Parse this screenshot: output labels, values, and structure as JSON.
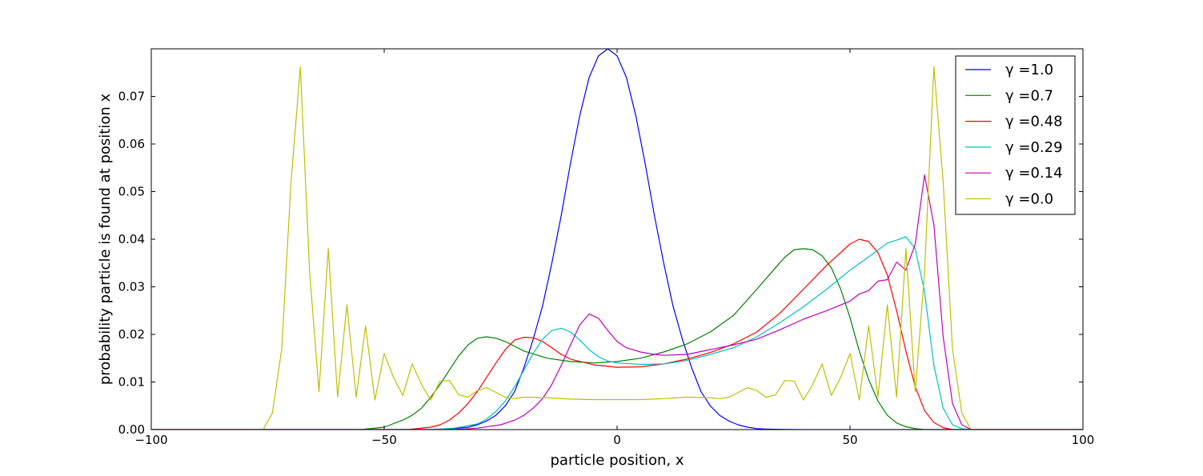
{
  "chart_data": {
    "type": "line",
    "title": "",
    "xlabel": "particle position, x",
    "ylabel": "probability particle is found at position x",
    "xlim": [
      -100,
      100
    ],
    "ylim": [
      0,
      0.08
    ],
    "xticks": [
      -100,
      -50,
      0,
      50,
      100
    ],
    "xtick_labels": [
      "−100",
      "−50",
      "0",
      "50",
      "100"
    ],
    "yticks": [
      0.0,
      0.01,
      0.02,
      0.03,
      0.04,
      0.05,
      0.06,
      0.07
    ],
    "ytick_labels": [
      "0.00",
      "0.01",
      "0.02",
      "0.03",
      "0.04",
      "0.05",
      "0.06",
      "0.07"
    ],
    "grid": false,
    "legend_position": "top-right",
    "series": [
      {
        "name": "γ =1.0",
        "color": "#0000ff",
        "x": [
          -100,
          -40,
          -35,
          -32,
          -30,
          -28,
          -26,
          -24,
          -22,
          -20,
          -18,
          -16,
          -14,
          -12,
          -10,
          -8,
          -6,
          -4,
          -2,
          0,
          2,
          4,
          6,
          8,
          10,
          12,
          14,
          16,
          18,
          20,
          22,
          24,
          26,
          28,
          30,
          32,
          35,
          40,
          100
        ],
        "y": [
          0,
          0,
          0.0002,
          0.0005,
          0.001,
          0.0018,
          0.003,
          0.005,
          0.008,
          0.013,
          0.019,
          0.026,
          0.035,
          0.045,
          0.056,
          0.066,
          0.074,
          0.0785,
          0.08,
          0.0785,
          0.074,
          0.066,
          0.056,
          0.045,
          0.035,
          0.026,
          0.019,
          0.013,
          0.008,
          0.005,
          0.003,
          0.0018,
          0.001,
          0.0005,
          0.0002,
          0.0001,
          5e-05,
          0,
          0
        ]
      },
      {
        "name": "γ =0.7",
        "color": "#008000",
        "x": [
          -100,
          -55,
          -50,
          -46,
          -44,
          -42,
          -40,
          -38,
          -36,
          -34,
          -32,
          -30,
          -28,
          -26,
          -24,
          -22,
          -20,
          -15,
          -10,
          -5,
          0,
          5,
          10,
          15,
          20,
          25,
          30,
          34,
          36,
          38,
          40,
          42,
          44,
          46,
          48,
          50,
          52,
          54,
          56,
          58,
          60,
          62,
          64,
          66,
          68,
          70,
          100
        ],
        "y": [
          0,
          0,
          0.0005,
          0.002,
          0.003,
          0.0045,
          0.0068,
          0.0095,
          0.0125,
          0.0155,
          0.0178,
          0.0192,
          0.0195,
          0.0192,
          0.0185,
          0.0175,
          0.0165,
          0.015,
          0.0143,
          0.014,
          0.0143,
          0.015,
          0.0163,
          0.018,
          0.0205,
          0.024,
          0.0295,
          0.034,
          0.0362,
          0.0378,
          0.038,
          0.0378,
          0.0365,
          0.034,
          0.0295,
          0.0235,
          0.0165,
          0.0105,
          0.006,
          0.003,
          0.0014,
          0.0006,
          0.0002,
          0,
          0,
          0,
          0
        ]
      },
      {
        "name": "γ =0.48",
        "color": "#ff0000",
        "x": [
          -100,
          -45,
          -40,
          -38,
          -36,
          -34,
          -32,
          -30,
          -28,
          -26,
          -24,
          -22,
          -20,
          -18,
          -16,
          -14,
          -12,
          -10,
          -5,
          0,
          5,
          10,
          15,
          20,
          25,
          30,
          35,
          40,
          45,
          50,
          52,
          54,
          56,
          58,
          60,
          62,
          64,
          66,
          68,
          70,
          72,
          100
        ],
        "y": [
          0,
          0,
          0.0005,
          0.001,
          0.002,
          0.0035,
          0.0055,
          0.008,
          0.011,
          0.014,
          0.0168,
          0.0188,
          0.0194,
          0.0193,
          0.0185,
          0.0172,
          0.0158,
          0.0148,
          0.0136,
          0.0131,
          0.0132,
          0.0138,
          0.0148,
          0.0162,
          0.018,
          0.0205,
          0.0245,
          0.0295,
          0.0345,
          0.039,
          0.04,
          0.0395,
          0.0372,
          0.0325,
          0.025,
          0.0165,
          0.009,
          0.004,
          0.0015,
          0.0004,
          0,
          0
        ]
      },
      {
        "name": "γ =0.29",
        "color": "#00bfbf",
        "x": [
          -100,
          -40,
          -35,
          -30,
          -28,
          -26,
          -24,
          -22,
          -20,
          -18,
          -16,
          -14,
          -12,
          -10,
          -8,
          -6,
          -4,
          -2,
          0,
          5,
          10,
          15,
          20,
          25,
          30,
          35,
          40,
          45,
          50,
          55,
          58,
          60,
          62,
          64,
          66,
          68,
          70,
          72,
          74,
          76,
          100
        ],
        "y": [
          0,
          0,
          0.0003,
          0.0012,
          0.0022,
          0.0038,
          0.006,
          0.009,
          0.0125,
          0.016,
          0.019,
          0.0208,
          0.0213,
          0.0205,
          0.0188,
          0.0168,
          0.0153,
          0.0144,
          0.014,
          0.0137,
          0.0138,
          0.0145,
          0.0158,
          0.0172,
          0.0195,
          0.0225,
          0.0258,
          0.0295,
          0.0335,
          0.037,
          0.0392,
          0.0398,
          0.0405,
          0.038,
          0.029,
          0.0135,
          0.0045,
          0.001,
          0.0002,
          0,
          0
        ]
      },
      {
        "name": "γ =0.14",
        "color": "#bf00bf",
        "x": [
          -100,
          -35,
          -30,
          -25,
          -22,
          -20,
          -18,
          -16,
          -14,
          -12,
          -10,
          -8,
          -6,
          -4,
          -2,
          0,
          2,
          5,
          8,
          10,
          15,
          20,
          25,
          30,
          35,
          40,
          45,
          50,
          52,
          54,
          56,
          58,
          60,
          62,
          64,
          66,
          68,
          70,
          72,
          74,
          76,
          100
        ],
        "y": [
          0,
          0,
          0.0003,
          0.001,
          0.002,
          0.003,
          0.0045,
          0.0065,
          0.0095,
          0.0135,
          0.0178,
          0.022,
          0.0243,
          0.0234,
          0.0208,
          0.0185,
          0.0172,
          0.0163,
          0.0158,
          0.0156,
          0.0158,
          0.0168,
          0.0178,
          0.019,
          0.021,
          0.0232,
          0.025,
          0.027,
          0.0285,
          0.0292,
          0.0312,
          0.0315,
          0.0352,
          0.0335,
          0.039,
          0.0535,
          0.043,
          0.0195,
          0.0055,
          0.001,
          0,
          0
        ]
      },
      {
        "name": "γ =0.0",
        "color": "#bfbf00",
        "x": [
          -100,
          -76,
          -74,
          -72,
          -70,
          -68,
          -66,
          -64,
          -62,
          -60,
          -58,
          -56,
          -54,
          -52,
          -50,
          -48,
          -46,
          -44,
          -42,
          -40,
          -38,
          -36,
          -34,
          -32,
          -30,
          -28,
          -26,
          -24,
          -22,
          -20,
          -15,
          -10,
          -5,
          0,
          5,
          10,
          15,
          20,
          22,
          24,
          26,
          28,
          30,
          32,
          34,
          36,
          38,
          40,
          42,
          44,
          46,
          48,
          50,
          52,
          54,
          56,
          58,
          60,
          62,
          64,
          66,
          68,
          70,
          72,
          74,
          76,
          100
        ],
        "y": [
          0,
          0,
          0.0035,
          0.017,
          0.052,
          0.0762,
          0.033,
          0.008,
          0.038,
          0.0068,
          0.0262,
          0.0068,
          0.0218,
          0.0062,
          0.016,
          0.011,
          0.0072,
          0.0138,
          0.0095,
          0.0062,
          0.0102,
          0.0103,
          0.0073,
          0.0068,
          0.0082,
          0.0088,
          0.0078,
          0.0068,
          0.0065,
          0.0068,
          0.0067,
          0.0064,
          0.0063,
          0.0063,
          0.0063,
          0.0065,
          0.0068,
          0.0067,
          0.0065,
          0.0068,
          0.0078,
          0.0088,
          0.0082,
          0.0068,
          0.0073,
          0.0103,
          0.0102,
          0.0062,
          0.0095,
          0.0138,
          0.0072,
          0.011,
          0.016,
          0.0062,
          0.0218,
          0.0068,
          0.0262,
          0.0068,
          0.038,
          0.008,
          0.033,
          0.0762,
          0.052,
          0.017,
          0.0035,
          0,
          0
        ]
      }
    ]
  }
}
